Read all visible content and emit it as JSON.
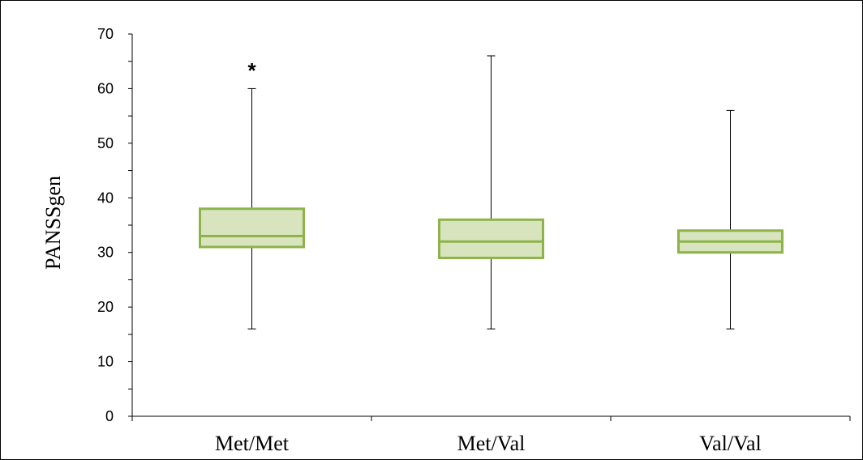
{
  "chart_data": {
    "type": "box",
    "ylabel": "PANSSgen",
    "xlabel": "",
    "title": "",
    "ylim": [
      0,
      70
    ],
    "yticks": [
      "0",
      "10",
      "20",
      "30",
      "40",
      "50",
      "60",
      "70"
    ],
    "categories": [
      "Met/Met",
      "Met/Val",
      "Val/Val"
    ],
    "series": [
      {
        "category": "Met/Met",
        "min": 16,
        "q1": 31,
        "median": 33,
        "q3": 38,
        "max": 60
      },
      {
        "category": "Met/Val",
        "min": 16,
        "q1": 29,
        "median": 32,
        "q3": 36,
        "max": 66
      },
      {
        "category": "Val/Val",
        "min": 16,
        "q1": 30,
        "median": 32,
        "q3": 34,
        "max": 56
      }
    ],
    "annotations": [
      {
        "category": "Met/Met",
        "text": "*",
        "y": 63.5
      }
    ],
    "colors": {
      "box_fill": "#d7e4bd",
      "box_stroke": "#8db34a",
      "whisker": "#000000",
      "axis": "#000000"
    },
    "grid": false,
    "legend": "none"
  }
}
